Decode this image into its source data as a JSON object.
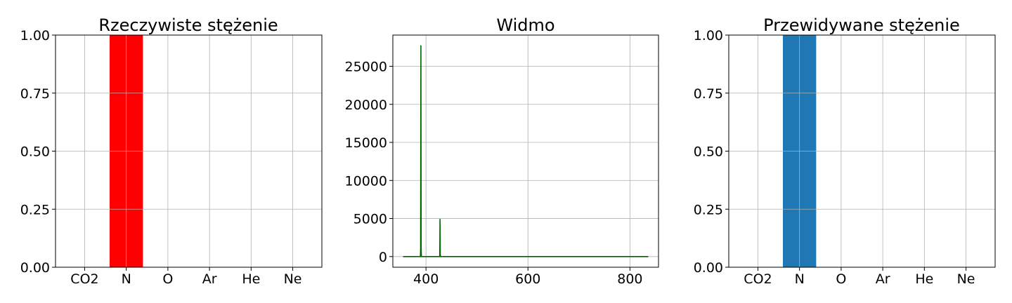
{
  "chart_data": [
    {
      "type": "bar",
      "title": "Rzeczywiste stężenie",
      "categories": [
        "CO2",
        "N",
        "O",
        "Ar",
        "He",
        "Ne"
      ],
      "values": [
        0,
        1,
        0,
        0,
        0,
        0
      ],
      "ylim": [
        0,
        1
      ],
      "yticks": [
        "0.00",
        "0.25",
        "0.50",
        "0.75",
        "1.00"
      ],
      "color": "#ff0000",
      "grid": true
    },
    {
      "type": "line",
      "title": "Widmo",
      "x": [
        355,
        389,
        389.5,
        390,
        390.5,
        391,
        427,
        427.5,
        428,
        428.5,
        429,
        836
      ],
      "y": [
        0,
        0,
        1000,
        27700,
        1000,
        0,
        0,
        4900,
        300,
        0,
        0,
        0
      ],
      "xlim": [
        335,
        856
      ],
      "ylim": [
        -1400,
        29100
      ],
      "xticks": [
        400,
        600,
        800
      ],
      "yticks": [
        0,
        5000,
        10000,
        15000,
        20000,
        25000
      ],
      "color": "#006400",
      "grid": true
    },
    {
      "type": "bar",
      "title": "Przewidywane stężenie",
      "categories": [
        "CO2",
        "N",
        "O",
        "Ar",
        "He",
        "Ne"
      ],
      "values": [
        0,
        1,
        0,
        0,
        0,
        0
      ],
      "ylim": [
        0,
        1
      ],
      "yticks": [
        "0.00",
        "0.25",
        "0.50",
        "0.75",
        "1.00"
      ],
      "color": "#1f77b4",
      "grid": true
    }
  ]
}
